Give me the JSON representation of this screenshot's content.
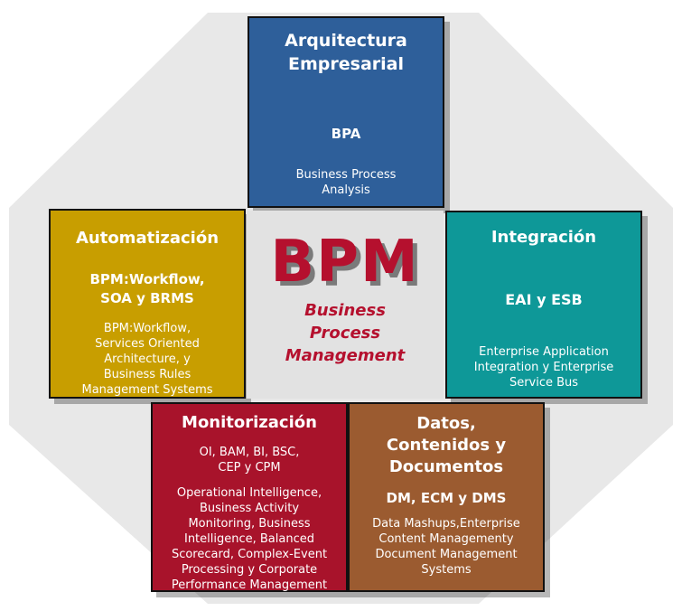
{
  "colors": {
    "octagon": "#e8e8e8",
    "arquitectura": "#2e5f9a",
    "automatizacion": "#c89e00",
    "integracion": "#0e9898",
    "monitorizacion": "#a8132b",
    "datos": "#9b5b30",
    "center": "#e2e2e2",
    "bpm_text": "#b5102e"
  },
  "center": {
    "title": "BPM",
    "subtitle": [
      "Business",
      "Process",
      "Management"
    ]
  },
  "arquitectura": {
    "title": [
      "Arquitectura",
      "Empresarial"
    ],
    "subtitle": "BPA",
    "description": [
      "Business Process",
      "Analysis"
    ]
  },
  "automatizacion": {
    "title": "Automatización",
    "subtitle": [
      "BPM:Workflow,",
      "SOA y BRMS"
    ],
    "description": [
      "BPM:Workflow,",
      "Services Oriented",
      "Architecture, y",
      "Business Rules",
      "Management Systems"
    ]
  },
  "integracion": {
    "title": "Integración",
    "subtitle": "EAI y ESB",
    "description": [
      "Enterprise Application",
      "Integration y Enterprise",
      "Service Bus"
    ]
  },
  "monitorizacion": {
    "title": "Monitorización",
    "subtitle": [
      "OI, BAM, BI, BSC,",
      "CEP y CPM"
    ],
    "description": [
      "Operational Intelligence,",
      "Business Activity",
      "Monitoring, Business",
      "Intelligence, Balanced",
      "Scorecard, Complex-Event",
      "Processing y Corporate",
      "Performance Management"
    ]
  },
  "datos": {
    "title": [
      "Datos,",
      "Contenidos y",
      "Documentos"
    ],
    "subtitle": "DM, ECM y DMS",
    "description": [
      "Data Mashups,Enterprise",
      "Content Managementy",
      "Document Management",
      "Systems"
    ]
  }
}
